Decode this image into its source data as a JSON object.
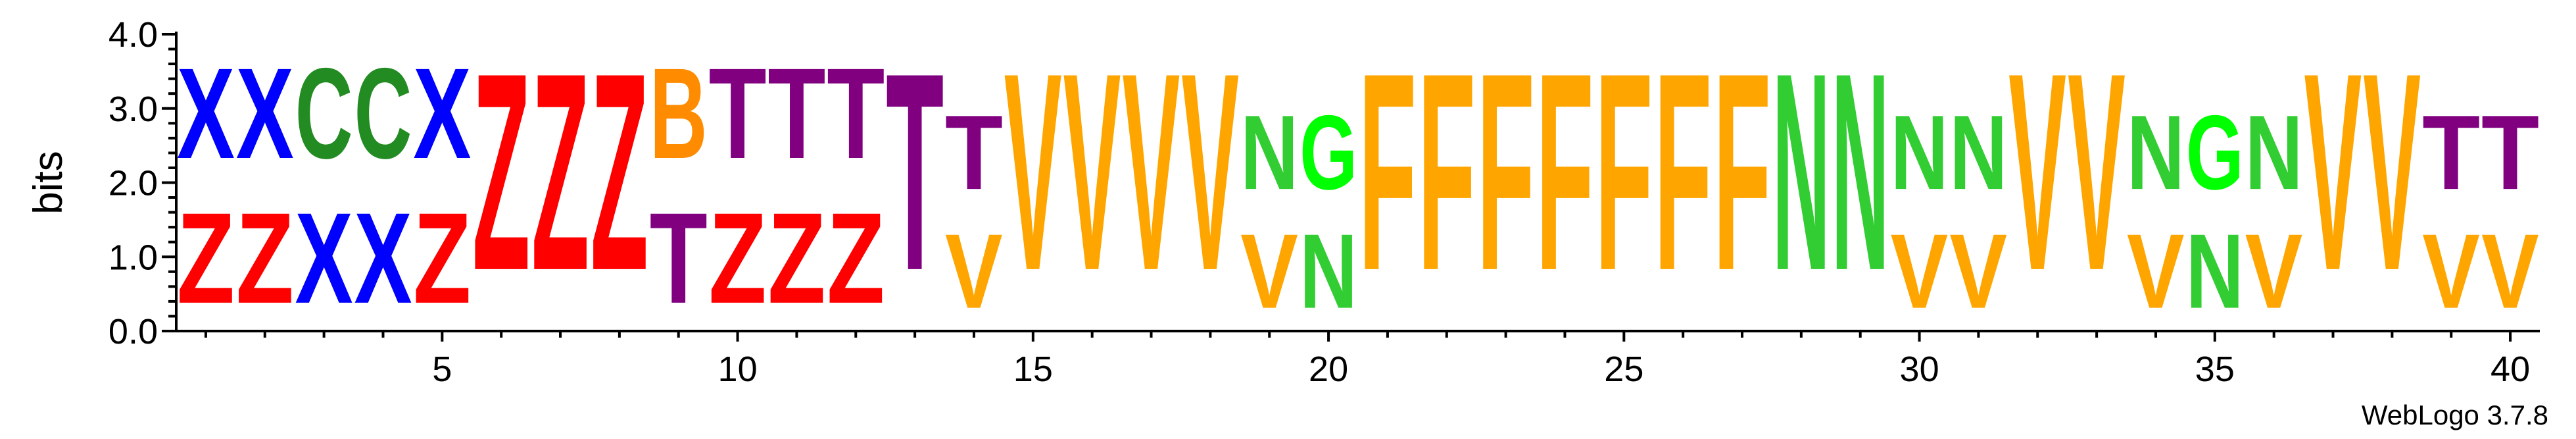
{
  "chart_data": {
    "type": "sequence-logo",
    "ylabel": "bits",
    "ylim": [
      0,
      4.0
    ],
    "y_ticks": [
      "0.0",
      "1.0",
      "2.0",
      "3.0",
      "4.0"
    ],
    "x_ticks": [
      5,
      10,
      15,
      20,
      25,
      30,
      35,
      40
    ],
    "xlim": [
      1,
      40
    ],
    "credit": "WebLogo 3.7.8",
    "colors": {
      "X": "#0000ff",
      "Z": "#ff0000",
      "C": "#228b22",
      "B": "#ff8c00",
      "T": "#800080",
      "V": "#ffa500",
      "N": "#32cd32",
      "G": "#00ff00",
      "F": "#ffa500"
    },
    "positions": [
      {
        "pos": 1,
        "stack": [
          {
            "letter": "Z",
            "bits": 1.95
          },
          {
            "letter": "X",
            "bits": 1.95
          }
        ]
      },
      {
        "pos": 2,
        "stack": [
          {
            "letter": "Z",
            "bits": 1.95
          },
          {
            "letter": "X",
            "bits": 1.95
          }
        ]
      },
      {
        "pos": 3,
        "stack": [
          {
            "letter": "X",
            "bits": 1.95
          },
          {
            "letter": "C",
            "bits": 1.95
          }
        ]
      },
      {
        "pos": 4,
        "stack": [
          {
            "letter": "X",
            "bits": 1.95
          },
          {
            "letter": "C",
            "bits": 1.95
          }
        ]
      },
      {
        "pos": 5,
        "stack": [
          {
            "letter": "Z",
            "bits": 1.95
          },
          {
            "letter": "X",
            "bits": 1.95
          }
        ]
      },
      {
        "pos": 6,
        "stack": [
          {
            "letter": "Z",
            "bits": 4.25
          }
        ]
      },
      {
        "pos": 7,
        "stack": [
          {
            "letter": "Z",
            "bits": 4.25
          }
        ]
      },
      {
        "pos": 8,
        "stack": [
          {
            "letter": "Z",
            "bits": 4.25
          }
        ]
      },
      {
        "pos": 9,
        "stack": [
          {
            "letter": "T",
            "bits": 1.95
          },
          {
            "letter": "B",
            "bits": 1.95
          }
        ]
      },
      {
        "pos": 10,
        "stack": [
          {
            "letter": "Z",
            "bits": 1.95
          },
          {
            "letter": "T",
            "bits": 1.95
          }
        ]
      },
      {
        "pos": 11,
        "stack": [
          {
            "letter": "Z",
            "bits": 1.95
          },
          {
            "letter": "T",
            "bits": 1.95
          }
        ]
      },
      {
        "pos": 12,
        "stack": [
          {
            "letter": "Z",
            "bits": 1.95
          },
          {
            "letter": "T",
            "bits": 1.95
          }
        ]
      },
      {
        "pos": 13,
        "stack": [
          {
            "letter": "T",
            "bits": 4.25
          }
        ]
      },
      {
        "pos": 14,
        "stack": [
          {
            "letter": "V",
            "bits": 1.6
          },
          {
            "letter": "T",
            "bits": 1.6
          }
        ]
      },
      {
        "pos": 15,
        "stack": [
          {
            "letter": "V",
            "bits": 4.25
          }
        ]
      },
      {
        "pos": 16,
        "stack": [
          {
            "letter": "V",
            "bits": 4.25
          }
        ]
      },
      {
        "pos": 17,
        "stack": [
          {
            "letter": "V",
            "bits": 4.25
          }
        ]
      },
      {
        "pos": 18,
        "stack": [
          {
            "letter": "V",
            "bits": 4.25
          }
        ]
      },
      {
        "pos": 19,
        "stack": [
          {
            "letter": "V",
            "bits": 1.6
          },
          {
            "letter": "N",
            "bits": 1.6
          }
        ]
      },
      {
        "pos": 20,
        "stack": [
          {
            "letter": "N",
            "bits": 1.6
          },
          {
            "letter": "G",
            "bits": 1.6
          }
        ]
      },
      {
        "pos": 21,
        "stack": [
          {
            "letter": "F",
            "bits": 4.25
          }
        ]
      },
      {
        "pos": 22,
        "stack": [
          {
            "letter": "F",
            "bits": 4.25
          }
        ]
      },
      {
        "pos": 23,
        "stack": [
          {
            "letter": "F",
            "bits": 4.25
          }
        ]
      },
      {
        "pos": 24,
        "stack": [
          {
            "letter": "F",
            "bits": 4.25
          }
        ]
      },
      {
        "pos": 25,
        "stack": [
          {
            "letter": "F",
            "bits": 4.25
          }
        ]
      },
      {
        "pos": 26,
        "stack": [
          {
            "letter": "F",
            "bits": 4.25
          }
        ]
      },
      {
        "pos": 27,
        "stack": [
          {
            "letter": "F",
            "bits": 4.25
          }
        ]
      },
      {
        "pos": 28,
        "stack": [
          {
            "letter": "N",
            "bits": 4.25
          }
        ]
      },
      {
        "pos": 29,
        "stack": [
          {
            "letter": "N",
            "bits": 4.25
          }
        ]
      },
      {
        "pos": 30,
        "stack": [
          {
            "letter": "V",
            "bits": 1.6
          },
          {
            "letter": "N",
            "bits": 1.6
          }
        ]
      },
      {
        "pos": 31,
        "stack": [
          {
            "letter": "V",
            "bits": 1.6
          },
          {
            "letter": "N",
            "bits": 1.6
          }
        ]
      },
      {
        "pos": 32,
        "stack": [
          {
            "letter": "V",
            "bits": 4.25
          }
        ]
      },
      {
        "pos": 33,
        "stack": [
          {
            "letter": "V",
            "bits": 4.25
          }
        ]
      },
      {
        "pos": 34,
        "stack": [
          {
            "letter": "V",
            "bits": 1.6
          },
          {
            "letter": "N",
            "bits": 1.6
          }
        ]
      },
      {
        "pos": 35,
        "stack": [
          {
            "letter": "N",
            "bits": 1.6
          },
          {
            "letter": "G",
            "bits": 1.6
          }
        ]
      },
      {
        "pos": 36,
        "stack": [
          {
            "letter": "V",
            "bits": 1.6
          },
          {
            "letter": "N",
            "bits": 1.6
          }
        ]
      },
      {
        "pos": 37,
        "stack": [
          {
            "letter": "V",
            "bits": 4.25
          }
        ]
      },
      {
        "pos": 38,
        "stack": [
          {
            "letter": "V",
            "bits": 4.25
          }
        ]
      },
      {
        "pos": 39,
        "stack": [
          {
            "letter": "V",
            "bits": 1.6
          },
          {
            "letter": "T",
            "bits": 1.6
          }
        ]
      },
      {
        "pos": 40,
        "stack": [
          {
            "letter": "V",
            "bits": 1.6
          },
          {
            "letter": "T",
            "bits": 1.6
          }
        ]
      }
    ]
  }
}
